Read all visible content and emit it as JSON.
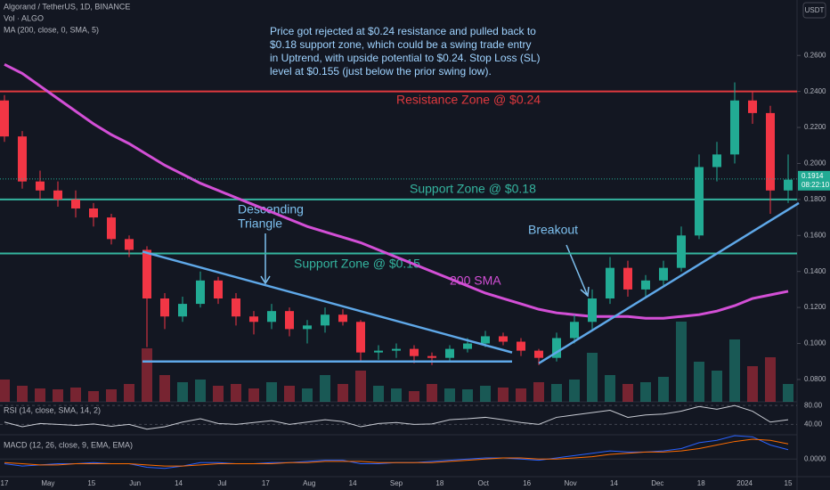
{
  "chart_data": {
    "type": "candlestick",
    "title": "Algorand / TetherUS, 1D, BINANCE",
    "volume_label": "Vol · ALGO",
    "ma_label": "MA (200, close, 0, SMA, 5)",
    "currency_button": "USDT",
    "annotation_text": [
      "Price got rejected at $0.24 resistance and pulled back to",
      "$0.18 support zone, which could be a swing trade entry",
      "in Uptrend, with upside potential to $0.24. Stop Loss (SL)",
      "level at $0.155 (just below the prior swing low)."
    ],
    "pattern_label": [
      "Descending",
      "Triangle"
    ],
    "breakout_label": "Breakout",
    "ma_name": "200 SMA",
    "up_color": "#22ab94",
    "down_color": "#f23645",
    "ma_color": "#d34fd6",
    "levels": [
      {
        "label": "Resistance Zone @ $0.24",
        "value": 0.24,
        "color": "#e0393e"
      },
      {
        "label": "Support Zone @ $0.18",
        "value": 0.18,
        "color": "#34b49f"
      },
      {
        "label": "Support Zone @ $0.15",
        "value": 0.15,
        "color": "#34b49f"
      }
    ],
    "trendlines": [
      {
        "start": 0.151,
        "end": 0.095
      },
      {
        "start": 0.09,
        "end": 0.09
      },
      {
        "start": 0.089,
        "end": 0.178
      }
    ],
    "trendline_color": "#5fa8e8",
    "last_price": {
      "value": 0.1914,
      "label": "0.1914"
    },
    "countdown": "08:22:10",
    "x_labels": [
      "17",
      "May",
      "15",
      "Jun",
      "14",
      "Jul",
      "17",
      "Aug",
      "14",
      "Sep",
      "18",
      "Oct",
      "16",
      "Nov",
      "14",
      "Dec",
      "18",
      "2024",
      "15"
    ],
    "open": [
      0.235,
      0.215,
      0.19,
      0.185,
      0.18,
      0.175,
      0.17,
      0.158,
      0.152,
      0.125,
      0.115,
      0.122,
      0.135,
      0.125,
      0.115,
      0.112,
      0.118,
      0.108,
      0.11,
      0.116,
      0.112,
      0.095,
      0.096,
      0.097,
      0.093,
      0.092,
      0.097,
      0.1,
      0.104,
      0.101,
      0.096,
      0.092,
      0.103,
      0.112,
      0.125,
      0.142,
      0.13,
      0.135,
      0.142,
      0.16,
      0.198,
      0.205,
      0.235,
      0.228,
      0.185
    ],
    "high": [
      0.238,
      0.218,
      0.196,
      0.19,
      0.185,
      0.178,
      0.172,
      0.16,
      0.154,
      0.128,
      0.126,
      0.14,
      0.137,
      0.128,
      0.118,
      0.122,
      0.12,
      0.113,
      0.12,
      0.119,
      0.113,
      0.099,
      0.1,
      0.099,
      0.095,
      0.099,
      0.103,
      0.107,
      0.106,
      0.103,
      0.097,
      0.106,
      0.116,
      0.13,
      0.148,
      0.146,
      0.138,
      0.146,
      0.165,
      0.205,
      0.212,
      0.245,
      0.24,
      0.232,
      0.205
    ],
    "low": [
      0.212,
      0.186,
      0.18,
      0.176,
      0.17,
      0.165,
      0.155,
      0.148,
      0.098,
      0.108,
      0.112,
      0.12,
      0.122,
      0.11,
      0.105,
      0.108,
      0.104,
      0.1,
      0.106,
      0.11,
      0.09,
      0.091,
      0.092,
      0.089,
      0.088,
      0.09,
      0.095,
      0.098,
      0.099,
      0.093,
      0.088,
      0.09,
      0.1,
      0.108,
      0.122,
      0.126,
      0.125,
      0.132,
      0.14,
      0.158,
      0.19,
      0.2,
      0.222,
      0.172,
      0.178
    ],
    "close": [
      0.215,
      0.19,
      0.185,
      0.18,
      0.175,
      0.17,
      0.158,
      0.152,
      0.125,
      0.115,
      0.122,
      0.135,
      0.125,
      0.115,
      0.112,
      0.118,
      0.108,
      0.11,
      0.116,
      0.112,
      0.095,
      0.096,
      0.097,
      0.093,
      0.092,
      0.097,
      0.1,
      0.104,
      0.101,
      0.096,
      0.092,
      0.103,
      0.112,
      0.125,
      0.142,
      0.13,
      0.135,
      0.142,
      0.16,
      0.198,
      0.205,
      0.235,
      0.228,
      0.185,
      0.191
    ],
    "volume": [
      25,
      18,
      15,
      14,
      16,
      12,
      14,
      20,
      60,
      30,
      22,
      25,
      18,
      20,
      15,
      22,
      18,
      15,
      30,
      20,
      35,
      18,
      15,
      12,
      20,
      15,
      14,
      18,
      16,
      15,
      22,
      20,
      25,
      55,
      30,
      20,
      22,
      28,
      90,
      45,
      35,
      70,
      40,
      50,
      20
    ],
    "ma": [
      0.255,
      0.25,
      0.243,
      0.236,
      0.229,
      0.222,
      0.216,
      0.211,
      0.205,
      0.199,
      0.194,
      0.189,
      0.185,
      0.181,
      0.177,
      0.173,
      0.169,
      0.165,
      0.162,
      0.159,
      0.156,
      0.152,
      0.148,
      0.144,
      0.14,
      0.136,
      0.132,
      0.128,
      0.125,
      0.122,
      0.119,
      0.117,
      0.116,
      0.115,
      0.115,
      0.115,
      0.114,
      0.114,
      0.115,
      0.116,
      0.118,
      0.121,
      0.125,
      0.127,
      0.129
    ],
    "ylim": [
      0.0676,
      0.2908
    ],
    "yticks": [
      {
        "value": 0.08,
        "label": "0.0800"
      },
      {
        "value": 0.1,
        "label": "0.1000"
      },
      {
        "value": 0.12,
        "label": "0.1200"
      },
      {
        "value": 0.14,
        "label": "0.1400"
      },
      {
        "value": 0.16,
        "label": "0.1600"
      },
      {
        "value": 0.18,
        "label": "0.1800"
      },
      {
        "value": 0.2,
        "label": "0.2000"
      },
      {
        "value": 0.22,
        "label": "0.2200"
      },
      {
        "value": 0.24,
        "label": "0.2400"
      },
      {
        "value": 0.26,
        "label": "0.2600"
      }
    ],
    "rsi": {
      "label": "RSI (14, close, SMA, 14, 2)",
      "color": "#c9ccd4",
      "ylim": [
        20,
        86
      ],
      "yticks": [
        {
          "value": 80,
          "label": "80.00"
        },
        {
          "value": 40,
          "label": "40.00"
        }
      ],
      "values": [
        45,
        35,
        42,
        40,
        38,
        41,
        36,
        40,
        30,
        35,
        45,
        52,
        42,
        40,
        44,
        48,
        40,
        45,
        50,
        46,
        35,
        42,
        44,
        40,
        41,
        50,
        52,
        55,
        50,
        44,
        40,
        55,
        60,
        65,
        70,
        55,
        60,
        62,
        68,
        78,
        72,
        80,
        68,
        45,
        50
      ]
    },
    "macd": {
      "label": "MACD (12, 26, close, 9, EMA, EMA)",
      "ylim": [
        -0.015,
        0.02
      ],
      "yticks": [
        {
          "value": 0,
          "label": "0.0000"
        }
      ],
      "series": [
        {
          "color": "#2962ff",
          "values": [
            -0.004,
            -0.006,
            -0.005,
            -0.004,
            -0.004,
            -0.003,
            -0.004,
            -0.004,
            -0.007,
            -0.008,
            -0.006,
            -0.003,
            -0.003,
            -0.004,
            -0.004,
            -0.003,
            -0.003,
            -0.002,
            -0.001,
            -0.001,
            -0.004,
            -0.004,
            -0.003,
            -0.003,
            -0.002,
            -0.001,
            0,
            0.001,
            0.001,
            0,
            -0.001,
            0.001,
            0.003,
            0.005,
            0.007,
            0.006,
            0.006,
            0.007,
            0.009,
            0.014,
            0.016,
            0.02,
            0.019,
            0.012,
            0.008
          ]
        },
        {
          "color": "#ff6d00",
          "values": [
            -0.003,
            -0.004,
            -0.005,
            -0.005,
            -0.004,
            -0.004,
            -0.004,
            -0.004,
            -0.005,
            -0.006,
            -0.006,
            -0.005,
            -0.004,
            -0.004,
            -0.004,
            -0.004,
            -0.003,
            -0.003,
            -0.002,
            -0.002,
            -0.002,
            -0.003,
            -0.003,
            -0.003,
            -0.003,
            -0.002,
            -0.001,
            0,
            0.001,
            0.001,
            0,
            0,
            0.001,
            0.002,
            0.004,
            0.005,
            0.006,
            0.006,
            0.007,
            0.009,
            0.012,
            0.015,
            0.017,
            0.016,
            0.013
          ]
        }
      ]
    }
  }
}
